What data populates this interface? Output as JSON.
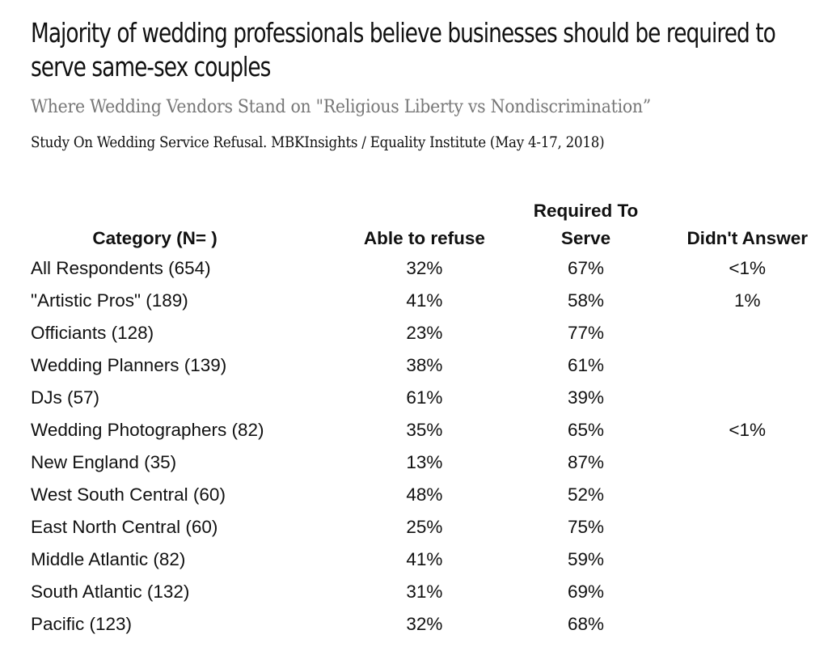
{
  "chart_data": {
    "type": "table",
    "title": "Majority of wedding professionals believe businesses should be required to serve same-sex couples",
    "subtitle": "Where Wedding Vendors Stand on \"Religious Liberty vs Nondiscrimination”",
    "source": "Study On Wedding Service Refusal. MBKInsights / Equality Institute (May 4-17, 2018)",
    "columns": [
      "Category (N= )",
      "Able to refuse",
      "Required To Serve",
      "Didn't Answer"
    ],
    "rows": [
      {
        "category": "All Respondents (654)",
        "able_to_refuse": "32%",
        "required_to_serve": "67%",
        "didnt_answer": "<1%"
      },
      {
        "category": "\"Artistic Pros\" (189)",
        "able_to_refuse": "41%",
        "required_to_serve": "58%",
        "didnt_answer": "1%"
      },
      {
        "category": "Officiants (128)",
        "able_to_refuse": "23%",
        "required_to_serve": "77%",
        "didnt_answer": ""
      },
      {
        "category": "Wedding Planners (139)",
        "able_to_refuse": "38%",
        "required_to_serve": "61%",
        "didnt_answer": ""
      },
      {
        "category": "DJs (57)",
        "able_to_refuse": "61%",
        "required_to_serve": "39%",
        "didnt_answer": ""
      },
      {
        "category": "Wedding Photographers (82)",
        "able_to_refuse": "35%",
        "required_to_serve": "65%",
        "didnt_answer": "<1%"
      },
      {
        "category": "New England (35)",
        "able_to_refuse": "13%",
        "required_to_serve": "87%",
        "didnt_answer": ""
      },
      {
        "category": "West South Central (60)",
        "able_to_refuse": "48%",
        "required_to_serve": "52%",
        "didnt_answer": ""
      },
      {
        "category": "East North Central (60)",
        "able_to_refuse": "25%",
        "required_to_serve": "75%",
        "didnt_answer": ""
      },
      {
        "category": "Middle Atlantic (82)",
        "able_to_refuse": "41%",
        "required_to_serve": "59%",
        "didnt_answer": ""
      },
      {
        "category": "South Atlantic (132)",
        "able_to_refuse": "31%",
        "required_to_serve": "69%",
        "didnt_answer": ""
      },
      {
        "category": "Pacific (123)",
        "able_to_refuse": "32%",
        "required_to_serve": "68%",
        "didnt_answer": ""
      }
    ]
  }
}
